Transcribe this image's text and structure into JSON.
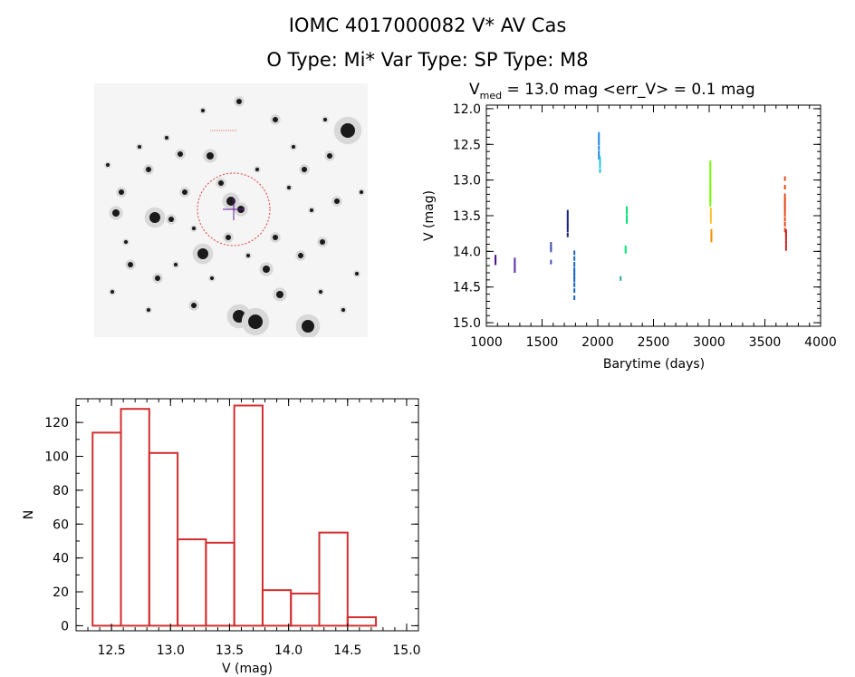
{
  "header": {
    "line1": "IOMC 4017000082    V* AV Cas",
    "line2": "O Type: Mi*   Var Type:     SP Type: M8"
  },
  "image_panel": {
    "crosshair_color": "#6a1b9a",
    "circle_color": "#e53935"
  },
  "chart_data": [
    {
      "type": "scatter",
      "title_prefix": "V",
      "title_sub": "med",
      "title_rest": " = 13.0 mag <err_V> = 0.1 mag",
      "xlabel": "Barytime (days)",
      "ylabel": "V (mag)",
      "xlim": [
        1000,
        4000
      ],
      "ylim": [
        15.05,
        11.95
      ],
      "xticks": [
        1000,
        1500,
        2000,
        2500,
        3000,
        3500,
        4000
      ],
      "yticks": [
        12.0,
        12.5,
        13.0,
        13.5,
        14.0,
        14.5,
        15.0
      ],
      "series": [
        {
          "color": "#4a148c",
          "x": [
            1082,
            1082,
            1082
          ],
          "y": [
            14.08,
            14.12,
            14.16
          ]
        },
        {
          "color": "#5e35b1",
          "x": [
            1255,
            1255,
            1255,
            1255,
            1255
          ],
          "y": [
            14.12,
            14.16,
            14.2,
            14.24,
            14.27
          ]
        },
        {
          "color": "#3f51b5",
          "x": [
            1580,
            1580,
            1580,
            1580
          ],
          "y": [
            13.9,
            13.95,
            13.98,
            14.15
          ]
        },
        {
          "color": "#1a237e",
          "x": [
            1730,
            1730,
            1730,
            1730,
            1730,
            1730,
            1730
          ],
          "y": [
            13.45,
            13.5,
            13.55,
            13.6,
            13.65,
            13.7,
            13.77
          ]
        },
        {
          "color": "#1565c0",
          "x": [
            1790,
            1790,
            1790,
            1790,
            1790,
            1790,
            1790,
            1790,
            1790,
            1790
          ],
          "y": [
            14.02,
            14.1,
            14.18,
            14.25,
            14.3,
            14.35,
            14.4,
            14.47,
            14.55,
            14.65
          ]
        },
        {
          "color": "#1e88e5",
          "x": [
            2010,
            2010,
            2010,
            2010,
            2010,
            2010
          ],
          "y": [
            12.36,
            12.42,
            12.48,
            12.55,
            12.62,
            12.68
          ]
        },
        {
          "color": "#26c6da",
          "x": [
            2020,
            2020,
            2020,
            2020
          ],
          "y": [
            12.7,
            12.75,
            12.8,
            12.87
          ]
        },
        {
          "color": "#26a69a",
          "x": [
            2205
          ],
          "y": [
            14.38
          ]
        },
        {
          "color": "#00e676",
          "x": [
            2250,
            2250,
            2260,
            2260,
            2260,
            2260
          ],
          "y": [
            13.95,
            14.0,
            13.4,
            13.45,
            13.52,
            13.58
          ]
        },
        {
          "color": "#76ff03",
          "x": [
            3010,
            3010,
            3010,
            3010,
            3010,
            3010,
            3010,
            3010,
            3010,
            3010,
            3010,
            3010,
            3010
          ],
          "y": [
            12.76,
            12.82,
            12.88,
            12.94,
            13.0,
            13.06,
            13.1,
            13.14,
            13.18,
            13.22,
            13.26,
            13.3,
            13.34
          ]
        },
        {
          "color": "#fbc02d",
          "x": [
            3015,
            3015,
            3015,
            3015
          ],
          "y": [
            13.42,
            13.48,
            13.53,
            13.58
          ]
        },
        {
          "color": "#fb8c00",
          "x": [
            3020,
            3020,
            3020,
            3020
          ],
          "y": [
            13.72,
            13.76,
            13.8,
            13.84
          ]
        },
        {
          "color": "#e64a19",
          "x": [
            3680,
            3680,
            3680,
            3680,
            3680,
            3680,
            3680,
            3680,
            3680,
            3680,
            3680,
            3680
          ],
          "y": [
            12.98,
            13.1,
            13.22,
            13.27,
            13.3,
            13.34,
            13.38,
            13.42,
            13.48,
            13.55,
            13.62,
            13.7
          ]
        },
        {
          "color": "#c62828",
          "x": [
            3690,
            3690,
            3690,
            3690,
            3690,
            3690
          ],
          "y": [
            13.72,
            13.76,
            13.8,
            13.85,
            13.9,
            13.96
          ]
        }
      ]
    },
    {
      "type": "bar",
      "xlabel": "V (mag)",
      "ylabel": "N",
      "xlim": [
        12.2,
        15.1
      ],
      "ylim": [
        -3,
        134
      ],
      "xticks": [
        12.5,
        13.0,
        13.5,
        14.0,
        14.5,
        15.0
      ],
      "xtick_labels": [
        "12.5",
        "13.0",
        "13.5",
        "14.0",
        "14.5",
        "15.0"
      ],
      "yticks": [
        0,
        20,
        40,
        60,
        80,
        100,
        120
      ],
      "bin_edges": [
        12.34,
        12.58,
        12.82,
        13.06,
        13.3,
        13.54,
        13.78,
        14.02,
        14.26,
        14.5,
        14.74
      ],
      "values": [
        114,
        128,
        102,
        51,
        49,
        130,
        21,
        19,
        55,
        5
      ],
      "bar_color": "#d32f2f"
    }
  ]
}
